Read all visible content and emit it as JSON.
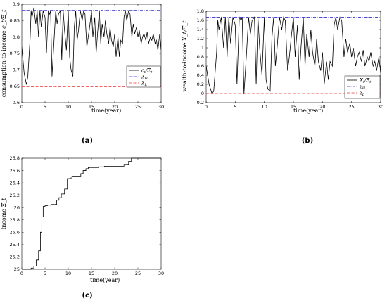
{
  "chart_data": [
    {
      "id": "a",
      "type": "line",
      "caption": "(a)",
      "xlabel": "time(year)",
      "ylabel": "consumption-to-income c_t/Ξ_t",
      "ylabel_main": "consumption-to-income",
      "ylabel_math": "c_t/Ξ_t",
      "xlim": [
        0,
        30
      ],
      "ylim": [
        0.6,
        0.9
      ],
      "xticks": [
        "0",
        "5",
        "10",
        "15",
        "20",
        "25",
        "30"
      ],
      "yticks": [
        "0.6",
        "0.65",
        "0.7",
        "0.75",
        "0.8",
        "0.85",
        "0.9"
      ],
      "legend_position": "center-right",
      "series": [
        {
          "name": "c_t/Ξ_t",
          "name_main": "c",
          "name_sub": "t",
          "name_den": "/Ξ",
          "name_den_sub": "t",
          "color": "#000000",
          "style": "solid",
          "x": [
            0,
            0.5,
            1,
            1.3,
            1.8,
            2.0,
            2.2,
            2.6,
            3.0,
            3.3,
            3.6,
            3.9,
            4.2,
            4.6,
            5.0,
            5.3,
            5.7,
            6.0,
            6.2,
            6.5,
            6.9,
            7.3,
            7.6,
            7.9,
            8.3,
            8.6,
            8.9,
            9.2,
            9.6,
            10.0,
            10.3,
            10.6,
            11.0,
            11.3,
            11.6,
            11.9,
            12.2,
            12.6,
            13.0,
            13.3,
            13.6,
            14.0,
            14.3,
            14.6,
            15.0,
            15.3,
            15.7,
            16.0,
            16.3,
            16.7,
            17.0,
            17.3,
            17.7,
            18.0,
            18.3,
            18.7,
            19.0,
            19.3,
            19.7,
            20.0,
            20.3,
            20.7,
            21.0,
            21.3,
            21.7,
            22.0,
            22.3,
            22.6,
            23.0,
            23.3,
            23.7,
            24.0,
            24.3,
            24.7,
            25.0,
            25.3,
            25.7,
            26.0,
            26.3,
            26.7,
            27.0,
            27.3,
            27.7,
            28.0,
            28.3,
            28.7,
            29.0,
            29.3,
            29.7,
            30.0
          ],
          "y": [
            0.77,
            0.69,
            0.655,
            0.68,
            0.8,
            0.88,
            0.86,
            0.89,
            0.84,
            0.88,
            0.8,
            0.88,
            0.83,
            0.88,
            0.86,
            0.75,
            0.88,
            0.87,
            0.88,
            0.68,
            0.78,
            0.88,
            0.84,
            0.87,
            0.88,
            0.73,
            0.88,
            0.82,
            0.76,
            0.88,
            0.74,
            0.7,
            0.68,
            0.83,
            0.88,
            0.79,
            0.82,
            0.88,
            0.85,
            0.88,
            0.87,
            0.77,
            0.8,
            0.83,
            0.88,
            0.8,
            0.86,
            0.75,
            0.81,
            0.88,
            0.78,
            0.84,
            0.8,
            0.85,
            0.81,
            0.78,
            0.83,
            0.79,
            0.77,
            0.81,
            0.74,
            0.8,
            0.74,
            0.79,
            0.78,
            0.86,
            0.88,
            0.85,
            0.88,
            0.87,
            0.8,
            0.84,
            0.81,
            0.83,
            0.8,
            0.82,
            0.78,
            0.8,
            0.81,
            0.79,
            0.815,
            0.78,
            0.8,
            0.79,
            0.81,
            0.78,
            0.79,
            0.76,
            0.81,
            0.76
          ]
        },
        {
          "name": "λ_H",
          "name_main": "λ",
          "name_sub": "H",
          "color": "#3333cc",
          "style": "dashdot",
          "x": [
            0,
            30
          ],
          "y": [
            0.882,
            0.882
          ]
        },
        {
          "name": "λ_L",
          "name_main": "λ",
          "name_sub": "L",
          "color": "#ee3333",
          "style": "dashed",
          "x": [
            0,
            30
          ],
          "y": [
            0.648,
            0.648
          ]
        }
      ]
    },
    {
      "id": "b",
      "type": "line",
      "caption": "(b)",
      "xlabel": "time(year)",
      "ylabel": "wealth-to-income X_t/Ξ_t",
      "ylabel_main": "wealth-to-income",
      "ylabel_math": "X_t/Ξ_t",
      "xlim": [
        0,
        30
      ],
      "ylim": [
        -0.2,
        1.8
      ],
      "xticks": [
        "0",
        "5",
        "10",
        "15",
        "20",
        "25",
        "30"
      ],
      "yticks": [
        "-0.2",
        "0",
        "0.2",
        "0.4",
        "0.6",
        "0.8",
        "1",
        "1.2",
        "1.4",
        "1.6",
        "1.8"
      ],
      "legend_position": "bottom-right",
      "series": [
        {
          "name": "X_t/Ξ_t",
          "name_main": "X",
          "name_sub": "t",
          "name_den": "/Ξ",
          "name_den_sub": "t",
          "color": "#000000",
          "style": "solid",
          "x": [
            0,
            0.5,
            1,
            1.3,
            1.8,
            2.0,
            2.2,
            2.6,
            3.0,
            3.3,
            3.6,
            3.9,
            4.2,
            4.6,
            5.0,
            5.3,
            5.7,
            6.0,
            6.2,
            6.5,
            6.9,
            7.3,
            7.6,
            7.9,
            8.3,
            8.6,
            8.9,
            9.2,
            9.6,
            10.0,
            10.3,
            10.6,
            11.0,
            11.3,
            11.6,
            11.9,
            12.2,
            12.6,
            13.0,
            13.3,
            13.6,
            14.0,
            14.3,
            14.6,
            15.0,
            15.3,
            15.7,
            16.0,
            16.3,
            16.7,
            17.0,
            17.3,
            17.7,
            18.0,
            18.3,
            18.7,
            19.0,
            19.3,
            19.7,
            20.0,
            20.3,
            20.7,
            21.0,
            21.3,
            21.7,
            22.0,
            22.3,
            22.6,
            23.0,
            23.3,
            23.7,
            24.0,
            24.3,
            24.7,
            25.0,
            25.3,
            25.7,
            26.0,
            26.3,
            26.7,
            27.0,
            27.3,
            27.7,
            28.0,
            28.3,
            28.7,
            29.0,
            29.3,
            29.7,
            30.0
          ],
          "y": [
            0.6,
            0.2,
            0.0,
            0.05,
            0.9,
            1.6,
            1.4,
            1.67,
            1.0,
            1.67,
            0.8,
            1.67,
            1.1,
            1.67,
            1.5,
            0.2,
            1.67,
            1.6,
            1.67,
            0.0,
            0.8,
            1.67,
            1.3,
            1.6,
            1.67,
            0.2,
            1.67,
            1.0,
            0.4,
            1.67,
            0.3,
            0.1,
            0.05,
            1.2,
            1.67,
            0.6,
            1.0,
            1.67,
            1.4,
            1.67,
            1.6,
            0.5,
            0.8,
            1.2,
            1.67,
            0.8,
            1.5,
            0.3,
            1.0,
            1.67,
            0.6,
            1.3,
            0.8,
            1.4,
            0.9,
            0.6,
            1.2,
            0.7,
            0.5,
            0.9,
            0.2,
            0.7,
            0.3,
            0.7,
            0.6,
            1.5,
            1.67,
            1.4,
            1.67,
            1.6,
            0.8,
            1.2,
            0.9,
            1.1,
            0.8,
            1.0,
            0.6,
            0.8,
            0.9,
            0.7,
            0.95,
            0.6,
            0.8,
            0.7,
            0.9,
            0.6,
            0.7,
            0.5,
            0.8,
            0.45
          ]
        },
        {
          "name": "z_H",
          "name_main": "z",
          "name_sub": "H",
          "color": "#3333cc",
          "style": "dashdot",
          "x": [
            0,
            30
          ],
          "y": [
            1.67,
            1.67
          ]
        },
        {
          "name": "z_L",
          "name_main": "z",
          "name_sub": "L",
          "color": "#ee3333",
          "style": "dashed",
          "x": [
            0,
            30
          ],
          "y": [
            0.0,
            0.0
          ]
        }
      ]
    },
    {
      "id": "c",
      "type": "line",
      "caption": "(c)",
      "xlabel": "time(year)",
      "ylabel": "income Ξ_t",
      "ylabel_main": "income",
      "ylabel_math": "Ξ_t",
      "xlim": [
        0,
        30
      ],
      "ylim": [
        25,
        26.8
      ],
      "xticks": [
        "0",
        "5",
        "10",
        "15",
        "20",
        "25",
        "30"
      ],
      "yticks": [
        "25",
        "25.2",
        "25.4",
        "25.6",
        "25.8",
        "26",
        "26.2",
        "26.4",
        "26.6",
        "26.8"
      ],
      "legend_position": "none",
      "series": [
        {
          "name": "",
          "color": "#000000",
          "style": "solid",
          "x": [
            0,
            2.0,
            2.0,
            2.6,
            2.6,
            3.1,
            3.1,
            3.6,
            3.6,
            4.0,
            4.0,
            4.3,
            4.3,
            4.6,
            4.6,
            5.0,
            5.0,
            5.5,
            5.5,
            6.3,
            6.3,
            7.5,
            7.5,
            8.0,
            8.0,
            8.5,
            8.5,
            9.2,
            9.2,
            9.8,
            9.8,
            10.4,
            10.4,
            10.8,
            10.8,
            12.7,
            12.7,
            13.2,
            13.2,
            13.8,
            13.8,
            14.3,
            14.3,
            16.5,
            16.5,
            17.8,
            17.8,
            22.0,
            22.0,
            23.0,
            23.0,
            23.6,
            23.6,
            30
          ],
          "y": [
            25,
            25,
            25.02,
            25.02,
            25.05,
            25.05,
            25.15,
            25.15,
            25.3,
            25.3,
            25.6,
            25.6,
            25.85,
            25.85,
            26.02,
            26.02,
            26.03,
            26.03,
            26.04,
            26.04,
            26.05,
            26.05,
            26.12,
            26.12,
            26.16,
            26.16,
            26.22,
            26.22,
            26.3,
            26.3,
            26.47,
            26.47,
            26.48,
            26.48,
            26.5,
            26.5,
            26.55,
            26.55,
            26.6,
            26.6,
            26.63,
            26.63,
            26.65,
            26.65,
            26.66,
            26.66,
            26.67,
            26.67,
            26.7,
            26.7,
            26.75,
            26.75,
            26.8,
            26.8
          ]
        }
      ]
    }
  ]
}
